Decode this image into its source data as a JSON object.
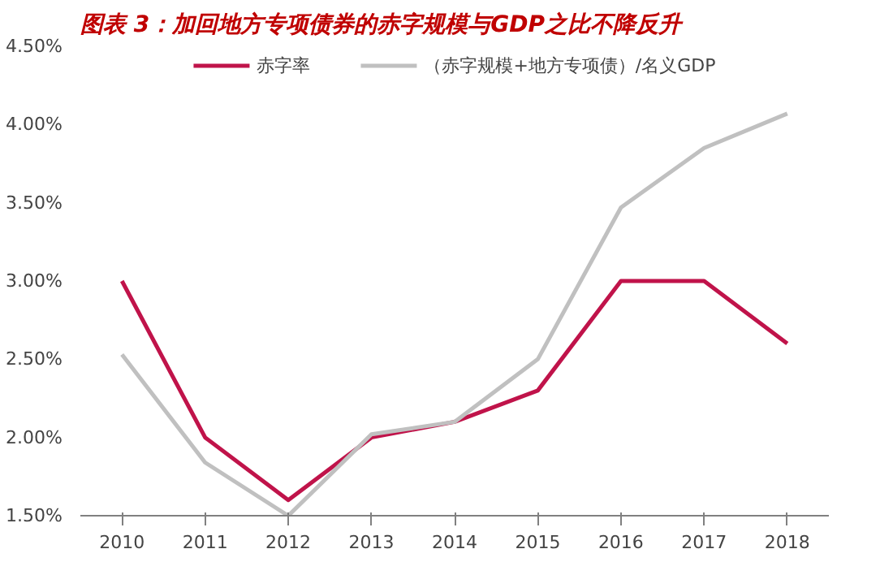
{
  "chart_data": {
    "type": "line",
    "title": "图表 3：加回地方专项债券的赤字规模与GDP之比不降反升",
    "categories": [
      "2010",
      "2011",
      "2012",
      "2013",
      "2014",
      "2015",
      "2016",
      "2017",
      "2018"
    ],
    "series": [
      {
        "name": "赤字率",
        "color": "#c0134a",
        "values": [
          3.0,
          2.0,
          1.6,
          2.0,
          2.1,
          2.3,
          3.0,
          3.0,
          2.6
        ]
      },
      {
        "name": "（赤字规模+地方专项债）/名义GDP",
        "color": "#c0c0c0",
        "values": [
          2.53,
          1.84,
          1.5,
          2.02,
          2.1,
          2.5,
          3.47,
          3.85,
          4.07
        ]
      }
    ],
    "ylim": [
      1.5,
      4.5
    ],
    "yticks": [
      {
        "value": 1.5,
        "label": "1.50%"
      },
      {
        "value": 2.0,
        "label": "2.00%"
      },
      {
        "value": 2.5,
        "label": "2.50%"
      },
      {
        "value": 3.0,
        "label": "3.00%"
      },
      {
        "value": 3.5,
        "label": "3.50%"
      },
      {
        "value": 4.0,
        "label": "4.00%"
      },
      {
        "value": 4.5,
        "label": "4.50%"
      }
    ],
    "grid": false,
    "legend": "top",
    "marker": "none",
    "line_style": "solid"
  }
}
